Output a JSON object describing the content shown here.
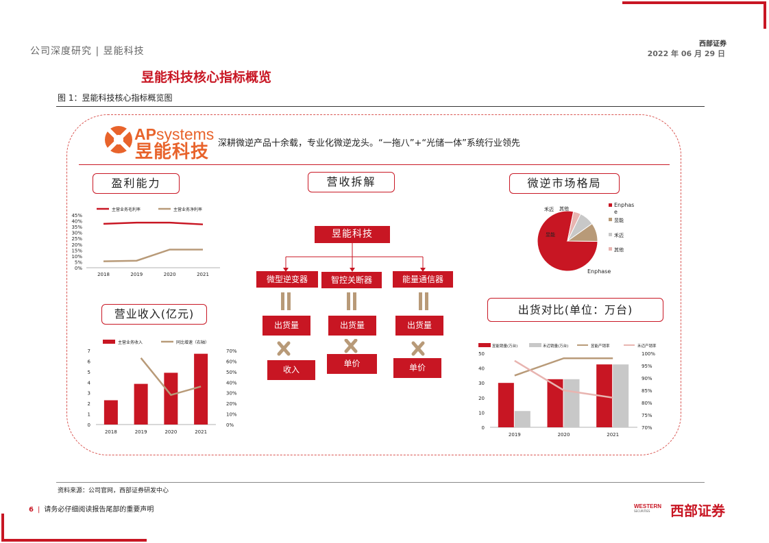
{
  "header": {
    "left": "公司深度研究 | 昱能科技",
    "brand": "西部证券",
    "date": "2022 年 06 月 29 日"
  },
  "section_title": "昱能科技核心指标概览",
  "figure_label": "图 1：昱能科技核心指标概览图",
  "logo": {
    "en_main": "AP",
    "en_sub": "systems",
    "cn": "昱能科技"
  },
  "tagline": "深耕微逆产品十余载，专业化微逆龙头。“一拖八”+“光储一体”系统行业领先",
  "panels": {
    "profit": "盈利能力",
    "revenue_split": "营收拆解",
    "market": "微逆市场格局",
    "revenue": "营业收入(亿元)",
    "shipment": "出货对比(单位：万台)"
  },
  "tree": {
    "root": "昱能科技",
    "branches": [
      "微型逆变器",
      "智控关断器",
      "能量通信器"
    ],
    "ship": [
      "出货量",
      "出货量",
      "出货量"
    ],
    "price": [
      "收入",
      "单价",
      "单价"
    ]
  },
  "source": "资料来源：公司官网，西部证券研发中心",
  "footer": {
    "page": "6",
    "text": "请务必仔细阅读报告尾部的重要声明"
  },
  "bottom_logo": {
    "en": "WESTERN",
    "en_sub": "SECURITIES",
    "cn": "西部证券"
  },
  "colors": {
    "brand_red": "#c81623",
    "tan": "#b89a78",
    "gray": "#c8c8c8",
    "pink": "#e8b4b0",
    "orange": "#e8632b"
  },
  "chart_data": [
    {
      "type": "line",
      "title": "",
      "categories": [
        "2018",
        "2019",
        "2020",
        "2021"
      ],
      "series": [
        {
          "name": "主营业务毛利率",
          "values": [
            37.5,
            38.5,
            38.5,
            37
          ]
        },
        {
          "name": "主营业务净利率",
          "values": [
            5.5,
            6,
            15.5,
            15.5
          ]
        }
      ],
      "y_ticks": [
        "45%",
        "40%",
        "35%",
        "30%",
        "25%",
        "20%",
        "15%",
        "10%",
        "5%",
        "0%"
      ],
      "ylim": [
        0,
        45
      ]
    },
    {
      "type": "bar",
      "title": "",
      "categories": [
        "2018",
        "2019",
        "2020",
        "2021"
      ],
      "series": [
        {
          "name": "主营业务收入",
          "values": [
            2.3,
            3.85,
            4.9,
            6.7
          ]
        },
        {
          "name": "同比增速（右轴）",
          "values": [
            null,
            63,
            28,
            36
          ]
        }
      ],
      "y_ticks": [
        "7",
        "6",
        "5",
        "4",
        "3",
        "2",
        "1",
        "0"
      ],
      "y2_ticks": [
        "70%",
        "60%",
        "50%",
        "40%",
        "30%",
        "20%",
        "10%",
        "0%"
      ],
      "ylim": [
        0,
        7
      ],
      "y2lim": [
        0,
        70
      ]
    },
    {
      "type": "pie",
      "title": "",
      "labels": [
        "Enphase",
        "昱能",
        "禾迈",
        "其他"
      ],
      "values": [
        78,
        10,
        8,
        4
      ],
      "slice_labels": [
        "Enphase",
        "昱能",
        "禾迈",
        "其他"
      ],
      "legend": [
        "Enphas e",
        "昱能",
        "禾迈",
        "其他"
      ]
    },
    {
      "type": "bar",
      "title": "",
      "categories": [
        "2019",
        "2020",
        "2021"
      ],
      "series": [
        {
          "name": "昱能销量(万台)",
          "values": [
            30,
            32.5,
            42.5
          ]
        },
        {
          "name": "禾迈销量(万台)",
          "values": [
            11,
            32.5,
            42.5
          ]
        },
        {
          "name": "昱能产销率",
          "values": [
            91,
            98,
            98
          ]
        },
        {
          "name": "禾迈产销率",
          "values": [
            97,
            85,
            82
          ]
        }
      ],
      "y_ticks": [
        "50",
        "40",
        "30",
        "20",
        "10",
        "0"
      ],
      "y2_ticks": [
        "100%",
        "95%",
        "90%",
        "85%",
        "80%",
        "75%",
        "70%"
      ],
      "ylim": [
        0,
        50
      ],
      "y2lim": [
        70,
        100
      ]
    }
  ]
}
